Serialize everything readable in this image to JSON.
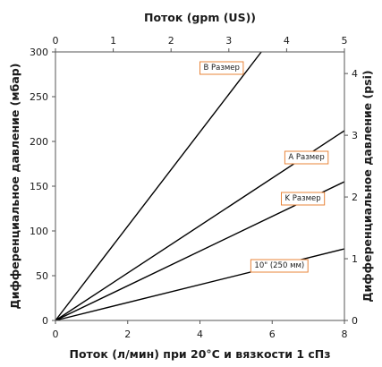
{
  "chart_data": {
    "type": "line",
    "xlabel_bottom": "Поток (л/мин) при 20°C и вязкости 1 сПз",
    "xlabel_top": "Поток (gpm (US))",
    "ylabel_left": "Дифференциальное давление (мбар)",
    "ylabel_right": "Дифференциальное давление (psi)",
    "x_bottom": {
      "range": [
        0,
        8
      ],
      "ticks": [
        0,
        2,
        4,
        6,
        8
      ]
    },
    "x_top": {
      "range": [
        0,
        5
      ],
      "ticks": [
        0,
        1,
        2,
        3,
        4,
        5
      ]
    },
    "y_left": {
      "range": [
        0,
        300
      ],
      "ticks": [
        0,
        50,
        100,
        150,
        200,
        250,
        300
      ]
    },
    "y_right": {
      "range": [
        0,
        4.35
      ],
      "ticks": [
        0,
        1,
        2,
        3,
        4
      ]
    },
    "grid": false,
    "series": [
      {
        "name": "B Размер",
        "x": [
          0,
          5.7
        ],
        "y": [
          0,
          300
        ],
        "label_at": [
          4.6,
          283
        ]
      },
      {
        "name": "A Размер",
        "x": [
          0,
          8
        ],
        "y": [
          0,
          212
        ],
        "label_at": [
          6.95,
          183
        ]
      },
      {
        "name": "K Размер",
        "x": [
          0,
          8
        ],
        "y": [
          0,
          155
        ],
        "label_at": [
          6.85,
          137
        ]
      },
      {
        "name": "10\" (250 мм)",
        "x": [
          0,
          8
        ],
        "y": [
          0,
          80
        ],
        "label_at": [
          6.2,
          62
        ]
      }
    ]
  }
}
